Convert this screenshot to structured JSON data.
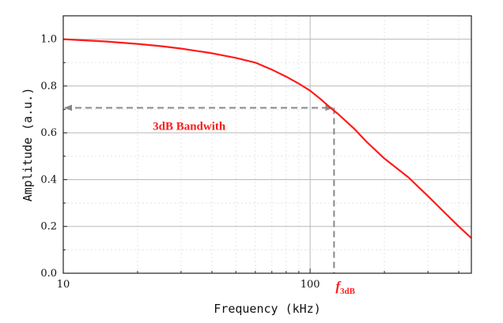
{
  "chart_data": {
    "type": "line",
    "title": "",
    "xlabel": "Frequency (kHz)",
    "ylabel": "Amplitude (a.u.)",
    "x_scale": "log",
    "xlim": [
      10,
      450
    ],
    "ylim": [
      0,
      1.1
    ],
    "x_ticks": [
      {
        "value": 10,
        "label": "10"
      },
      {
        "value": 100,
        "label": "100"
      }
    ],
    "y_ticks": [
      {
        "value": 0.0,
        "label": "0.0"
      },
      {
        "value": 0.2,
        "label": "0.2"
      },
      {
        "value": 0.4,
        "label": "0.4"
      },
      {
        "value": 0.6,
        "label": "0.6"
      },
      {
        "value": 0.8,
        "label": "0.8"
      },
      {
        "value": 1.0,
        "label": "1.0"
      }
    ],
    "grid": true,
    "series": [
      {
        "color": "#ff1a1a",
        "x": [
          10,
          15,
          20,
          25,
          30,
          40,
          50,
          60,
          70,
          80,
          90,
          100,
          110,
          120,
          130,
          150,
          170,
          200,
          250,
          300,
          350,
          400,
          450
        ],
        "y": [
          1.0,
          0.99,
          0.98,
          0.97,
          0.96,
          0.94,
          0.92,
          0.9,
          0.87,
          0.84,
          0.81,
          0.78,
          0.745,
          0.71,
          0.68,
          0.62,
          0.56,
          0.49,
          0.41,
          0.33,
          0.26,
          0.2,
          0.15
        ]
      }
    ],
    "annotations": {
      "bandwidth_label": "3dB Bandwith",
      "f3db_main": "f",
      "f3db_sub": "3dB",
      "f3db_x": 125,
      "f3db_y": 0.707,
      "arrow_color": "#888888"
    }
  }
}
